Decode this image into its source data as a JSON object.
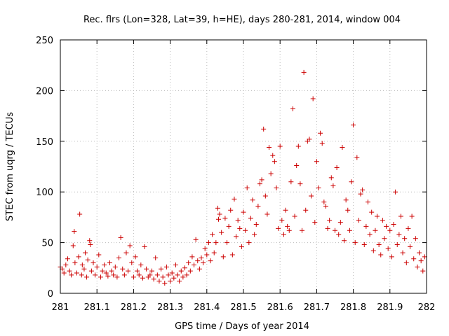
{
  "chart_data": {
    "type": "scatter",
    "title": "Rec. flrs (Lon=328, Lat=39, h=HE), days 280-281, 2014, window 004",
    "xlabel": "GPS time / Days of year 2014",
    "ylabel": "STEC from uqrg / TECUs",
    "xlim": [
      281,
      282
    ],
    "ylim": [
      0,
      250
    ],
    "xticks": [
      281,
      281.1,
      281.2,
      281.3,
      281.4,
      281.5,
      281.6,
      281.7,
      281.8,
      281.9,
      282
    ],
    "xtick_labels": [
      "281",
      "281.1",
      "281.2",
      "281.3",
      "281.4",
      "281.5",
      "281.6",
      "281.7",
      "281.8",
      "281.9",
      "282"
    ],
    "yticks": [
      0,
      50,
      100,
      150,
      200,
      250
    ],
    "ytick_labels": [
      "0",
      "50",
      "100",
      "150",
      "200",
      "250"
    ],
    "grid": true,
    "marker": "plus",
    "color": "#cc0000",
    "series": [
      {
        "name": "STEC",
        "points": [
          [
            281.0,
            26
          ],
          [
            281.005,
            24
          ],
          [
            281.01,
            20
          ],
          [
            281.015,
            28
          ],
          [
            281.02,
            34
          ],
          [
            281.025,
            22
          ],
          [
            281.03,
            18
          ],
          [
            281.035,
            47
          ],
          [
            281.038,
            61
          ],
          [
            281.04,
            30
          ],
          [
            281.045,
            20
          ],
          [
            281.05,
            36
          ],
          [
            281.053,
            78
          ],
          [
            281.058,
            18
          ],
          [
            281.06,
            28
          ],
          [
            281.065,
            24
          ],
          [
            281.068,
            40
          ],
          [
            281.072,
            16
          ],
          [
            281.075,
            33
          ],
          [
            281.08,
            52
          ],
          [
            281.082,
            48
          ],
          [
            281.085,
            22
          ],
          [
            281.09,
            30
          ],
          [
            281.095,
            18
          ],
          [
            281.1,
            26
          ],
          [
            281.105,
            38
          ],
          [
            281.11,
            16
          ],
          [
            281.115,
            22
          ],
          [
            281.12,
            28
          ],
          [
            281.125,
            20
          ],
          [
            281.13,
            17
          ],
          [
            281.135,
            30
          ],
          [
            281.14,
            22
          ],
          [
            281.145,
            18
          ],
          [
            281.15,
            26
          ],
          [
            281.155,
            16
          ],
          [
            281.16,
            35
          ],
          [
            281.165,
            55
          ],
          [
            281.17,
            24
          ],
          [
            281.175,
            18
          ],
          [
            281.18,
            40
          ],
          [
            281.185,
            22
          ],
          [
            281.19,
            47
          ],
          [
            281.195,
            30
          ],
          [
            281.2,
            16
          ],
          [
            281.205,
            36
          ],
          [
            281.21,
            22
          ],
          [
            281.215,
            18
          ],
          [
            281.22,
            28
          ],
          [
            281.225,
            15
          ],
          [
            281.23,
            46
          ],
          [
            281.235,
            24
          ],
          [
            281.24,
            16
          ],
          [
            281.245,
            18
          ],
          [
            281.25,
            22
          ],
          [
            281.255,
            14
          ],
          [
            281.26,
            35
          ],
          [
            281.265,
            18
          ],
          [
            281.27,
            12
          ],
          [
            281.275,
            24
          ],
          [
            281.28,
            16
          ],
          [
            281.285,
            10
          ],
          [
            281.29,
            26
          ],
          [
            281.295,
            18
          ],
          [
            281.3,
            12
          ],
          [
            281.305,
            20
          ],
          [
            281.31,
            15
          ],
          [
            281.315,
            28
          ],
          [
            281.32,
            18
          ],
          [
            281.325,
            12
          ],
          [
            281.33,
            22
          ],
          [
            281.335,
            16
          ],
          [
            281.34,
            25
          ],
          [
            281.345,
            18
          ],
          [
            281.35,
            30
          ],
          [
            281.355,
            22
          ],
          [
            281.36,
            36
          ],
          [
            281.365,
            28
          ],
          [
            281.37,
            53
          ],
          [
            281.375,
            32
          ],
          [
            281.38,
            24
          ],
          [
            281.385,
            35
          ],
          [
            281.39,
            30
          ],
          [
            281.395,
            44
          ],
          [
            281.4,
            38
          ],
          [
            281.405,
            50
          ],
          [
            281.41,
            32
          ],
          [
            281.415,
            58
          ],
          [
            281.42,
            40
          ],
          [
            281.425,
            50
          ],
          [
            281.43,
            84
          ],
          [
            281.432,
            73
          ],
          [
            281.435,
            78
          ],
          [
            281.44,
            60
          ],
          [
            281.445,
            36
          ],
          [
            281.45,
            74
          ],
          [
            281.455,
            50
          ],
          [
            281.46,
            66
          ],
          [
            281.465,
            82
          ],
          [
            281.47,
            38
          ],
          [
            281.475,
            93
          ],
          [
            281.48,
            56
          ],
          [
            281.485,
            72
          ],
          [
            281.49,
            64
          ],
          [
            281.495,
            46
          ],
          [
            281.5,
            80
          ],
          [
            281.505,
            62
          ],
          [
            281.51,
            104
          ],
          [
            281.515,
            50
          ],
          [
            281.52,
            74
          ],
          [
            281.525,
            92
          ],
          [
            281.53,
            58
          ],
          [
            281.535,
            68
          ],
          [
            281.54,
            86
          ],
          [
            281.545,
            108
          ],
          [
            281.55,
            112
          ],
          [
            281.555,
            162
          ],
          [
            281.56,
            96
          ],
          [
            281.565,
            78
          ],
          [
            281.57,
            144
          ],
          [
            281.575,
            118
          ],
          [
            281.58,
            136
          ],
          [
            281.585,
            130
          ],
          [
            281.59,
            104
          ],
          [
            281.595,
            64
          ],
          [
            281.6,
            145
          ],
          [
            281.605,
            72
          ],
          [
            281.61,
            58
          ],
          [
            281.615,
            82
          ],
          [
            281.62,
            66
          ],
          [
            281.625,
            62
          ],
          [
            281.63,
            110
          ],
          [
            281.635,
            182
          ],
          [
            281.64,
            76
          ],
          [
            281.645,
            126
          ],
          [
            281.65,
            145
          ],
          [
            281.655,
            108
          ],
          [
            281.66,
            62
          ],
          [
            281.665,
            218
          ],
          [
            281.67,
            82
          ],
          [
            281.675,
            150
          ],
          [
            281.68,
            152
          ],
          [
            281.685,
            96
          ],
          [
            281.69,
            192
          ],
          [
            281.695,
            70
          ],
          [
            281.7,
            130
          ],
          [
            281.705,
            104
          ],
          [
            281.71,
            158
          ],
          [
            281.715,
            148
          ],
          [
            281.72,
            90
          ],
          [
            281.725,
            86
          ],
          [
            281.73,
            64
          ],
          [
            281.735,
            72
          ],
          [
            281.74,
            114
          ],
          [
            281.745,
            106
          ],
          [
            281.75,
            62
          ],
          [
            281.755,
            124
          ],
          [
            281.76,
            58
          ],
          [
            281.765,
            70
          ],
          [
            281.77,
            144
          ],
          [
            281.775,
            52
          ],
          [
            281.78,
            92
          ],
          [
            281.785,
            82
          ],
          [
            281.79,
            62
          ],
          [
            281.795,
            110
          ],
          [
            281.8,
            166
          ],
          [
            281.805,
            50
          ],
          [
            281.81,
            134
          ],
          [
            281.815,
            72
          ],
          [
            281.82,
            98
          ],
          [
            281.825,
            102
          ],
          [
            281.83,
            48
          ],
          [
            281.835,
            66
          ],
          [
            281.84,
            90
          ],
          [
            281.845,
            58
          ],
          [
            281.85,
            80
          ],
          [
            281.855,
            42
          ],
          [
            281.86,
            62
          ],
          [
            281.865,
            76
          ],
          [
            281.87,
            48
          ],
          [
            281.875,
            38
          ],
          [
            281.88,
            72
          ],
          [
            281.885,
            54
          ],
          [
            281.89,
            66
          ],
          [
            281.895,
            44
          ],
          [
            281.9,
            62
          ],
          [
            281.905,
            36
          ],
          [
            281.91,
            68
          ],
          [
            281.915,
            100
          ],
          [
            281.92,
            48
          ],
          [
            281.925,
            58
          ],
          [
            281.93,
            76
          ],
          [
            281.935,
            40
          ],
          [
            281.94,
            54
          ],
          [
            281.945,
            30
          ],
          [
            281.95,
            64
          ],
          [
            281.955,
            46
          ],
          [
            281.96,
            76
          ],
          [
            281.965,
            34
          ],
          [
            281.97,
            54
          ],
          [
            281.975,
            26
          ],
          [
            281.98,
            40
          ],
          [
            281.985,
            32
          ],
          [
            281.99,
            22
          ],
          [
            281.995,
            36
          ]
        ]
      }
    ]
  }
}
